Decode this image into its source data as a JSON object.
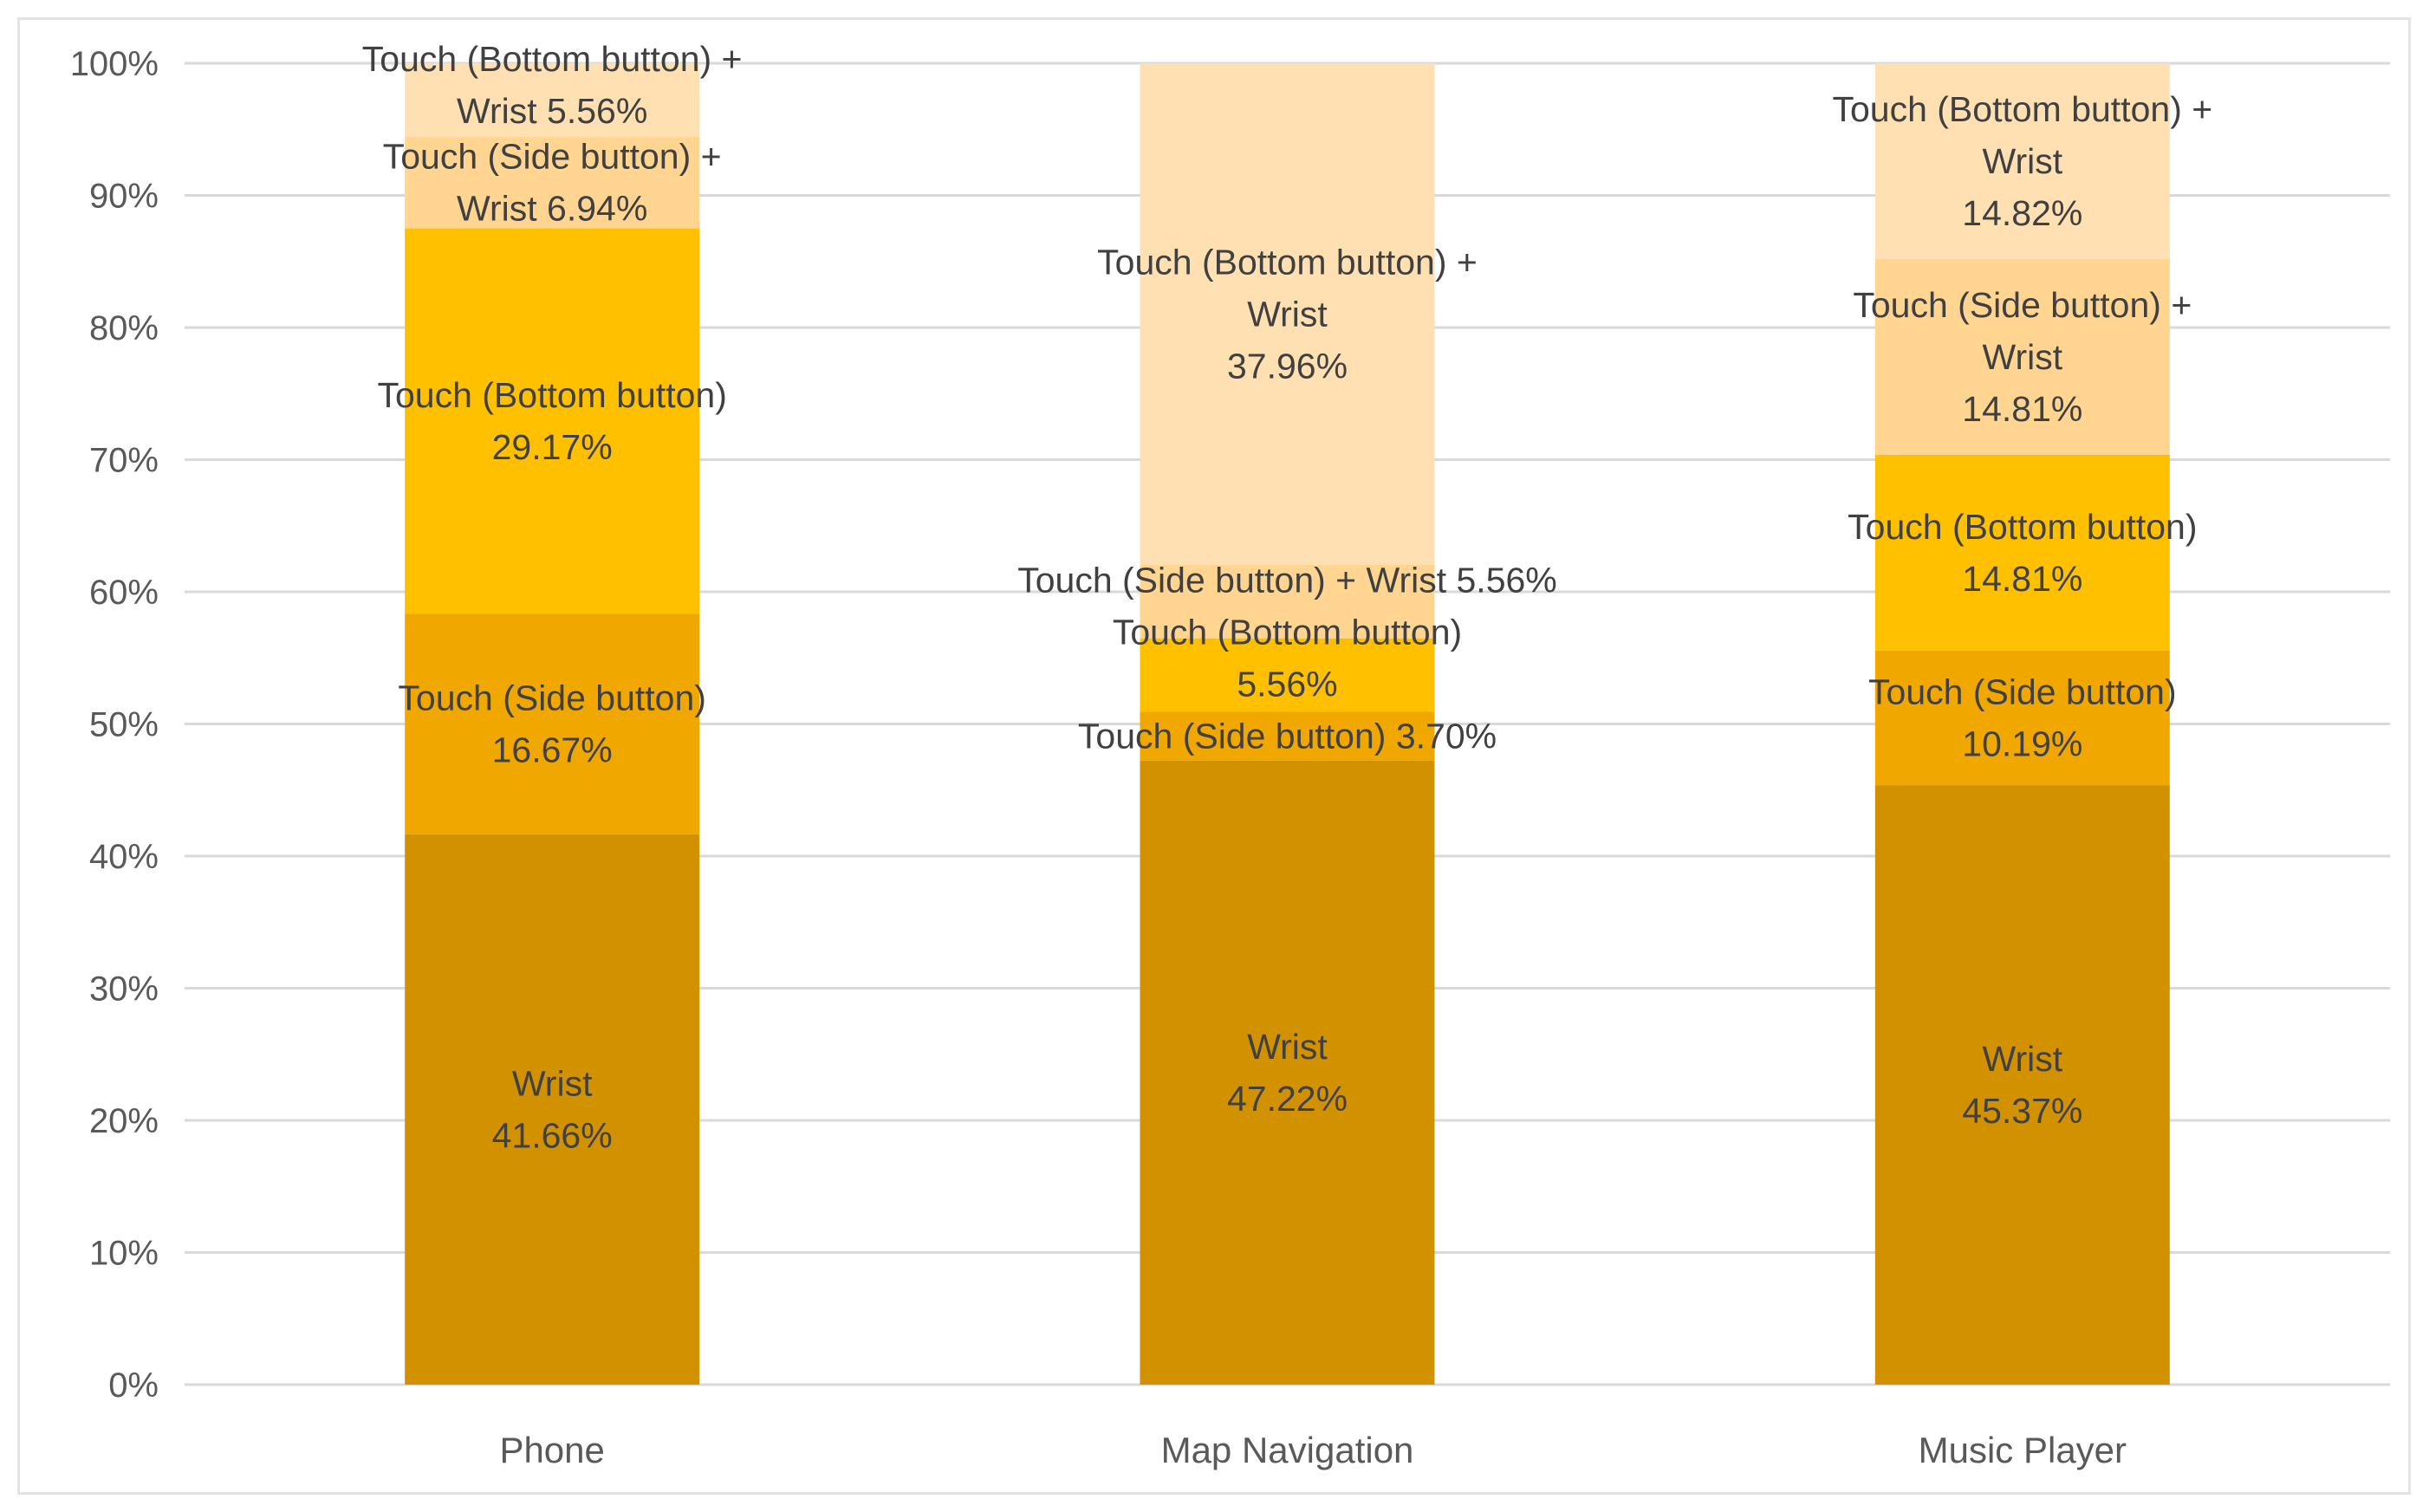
{
  "chart_data": {
    "type": "bar",
    "stacked": true,
    "percent_stacked": true,
    "title": "",
    "xlabel": "",
    "ylabel": "",
    "ylim": [
      0,
      100
    ],
    "y_ticks": [
      0,
      10,
      20,
      30,
      40,
      50,
      60,
      70,
      80,
      90,
      100
    ],
    "y_tick_labels": [
      "0%",
      "10%",
      "20%",
      "30%",
      "40%",
      "50%",
      "60%",
      "70%",
      "80%",
      "90%",
      "100%"
    ],
    "grid": true,
    "legend": "none",
    "categories": [
      "Phone",
      "Map Navigation",
      "Music Player"
    ],
    "series": [
      {
        "name": "Wrist",
        "color": "#D29200",
        "values": [
          41.66,
          47.22,
          45.37
        ],
        "labels": [
          [
            "Wrist",
            "41.66%"
          ],
          [
            "Wrist",
            "47.22%"
          ],
          [
            "Wrist",
            "45.37%"
          ]
        ]
      },
      {
        "name": "Touch (Side button)",
        "color": "#F0A800",
        "values": [
          16.67,
          3.7,
          10.19
        ],
        "labels": [
          [
            "Touch (Side button)",
            "16.67%"
          ],
          [
            "Touch (Side button) 3.70%"
          ],
          [
            "Touch (Side button)",
            "10.19%"
          ]
        ]
      },
      {
        "name": "Touch (Bottom button)",
        "color": "#FFC000",
        "values": [
          29.17,
          5.56,
          14.81
        ],
        "labels": [
          [
            "Touch (Bottom button)",
            "29.17%"
          ],
          [
            "Touch (Bottom button)",
            "5.56%"
          ],
          [
            "Touch (Bottom button)",
            "14.81%"
          ]
        ]
      },
      {
        "name": "Touch (Side button) + Wrist",
        "color": "#FFD591",
        "values": [
          6.94,
          5.56,
          14.81
        ],
        "labels": [
          [
            "Touch (Side button) +",
            "Wrist 6.94%"
          ],
          [
            "Touch (Side button) + Wrist 5.56%"
          ],
          [
            "Touch (Side button) +",
            "Wrist",
            "14.81%"
          ]
        ]
      },
      {
        "name": "Touch (Bottom button) + Wrist",
        "color": "#FFE0B2",
        "values": [
          5.56,
          37.96,
          14.82
        ],
        "labels": [
          [
            "Touch (Bottom button) +",
            "Wrist 5.56%"
          ],
          [
            "Touch (Bottom button) +",
            "Wrist",
            "37.96%"
          ],
          [
            "Touch (Bottom button) +",
            "Wrist",
            "14.82%"
          ]
        ]
      }
    ],
    "gridline_color": "#d9d9d9",
    "axis_text_color": "#595959",
    "label_text_color": "#404040"
  }
}
